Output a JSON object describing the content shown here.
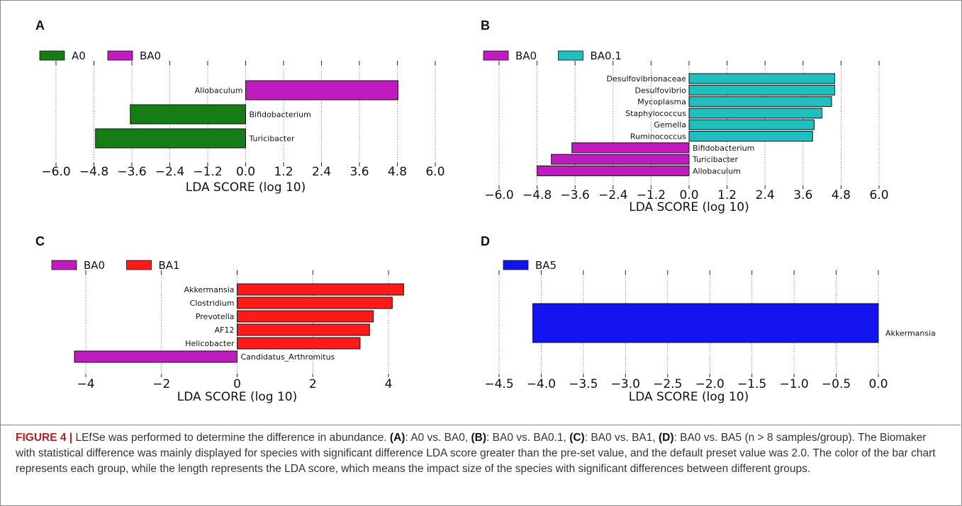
{
  "panels": [
    "A",
    "B",
    "C",
    "D"
  ],
  "chart_data": [
    {
      "panel": "A",
      "type": "bar",
      "orientation": "horizontal",
      "xlabel": "LDA SCORE (log 10)",
      "xlim": [
        -6.6,
        6.6
      ],
      "xticks": [
        -6.0,
        -4.8,
        -3.6,
        -2.4,
        -1.2,
        0.0,
        1.2,
        2.4,
        3.6,
        4.8,
        6.0
      ],
      "tick_labels": [
        "−6.0",
        "−4.8",
        "−3.6",
        "−2.4",
        "−1.2",
        "0.0",
        "1.2",
        "2.4",
        "3.6",
        "4.8",
        "6.0"
      ],
      "grid": "vertical dotted",
      "legend": [
        {
          "name": "A0",
          "color": "#167d16"
        },
        {
          "name": "BA0",
          "color": "#bf1bbf"
        }
      ],
      "categories": [
        "Allobaculum",
        "Bifidobacterium",
        "Turicibacter"
      ],
      "values": [
        4.82,
        -3.65,
        -4.75
      ],
      "colors": [
        "#bf1bbf",
        "#167d16",
        "#167d16"
      ]
    },
    {
      "panel": "B",
      "type": "bar",
      "orientation": "horizontal",
      "xlabel": "LDA SCORE (log 10)",
      "xlim": [
        -6.6,
        6.6
      ],
      "xticks": [
        -6.0,
        -4.8,
        -3.6,
        -2.4,
        -1.2,
        0.0,
        1.2,
        2.4,
        3.6,
        4.8,
        6.0
      ],
      "tick_labels": [
        "−6.0",
        "−4.8",
        "−3.6",
        "−2.4",
        "−1.2",
        "0.0",
        "1.2",
        "2.4",
        "3.6",
        "4.8",
        "6.0"
      ],
      "grid": "vertical dotted",
      "legend": [
        {
          "name": "BA0",
          "color": "#bf1bbf"
        },
        {
          "name": "BA0.1",
          "color": "#1fbfbf"
        }
      ],
      "categories": [
        "Desulfovibrionaceae",
        "Desulfovibrio",
        "Mycoplasma",
        "Staphylococcus",
        "Gemella",
        "Ruminococcus",
        "Bifidobacterium",
        "Turicibacter",
        "Allobaculum"
      ],
      "values": [
        4.6,
        4.6,
        4.5,
        4.2,
        3.95,
        3.9,
        -3.7,
        -4.35,
        -4.8
      ],
      "colors": [
        "#1fbfbf",
        "#1fbfbf",
        "#1fbfbf",
        "#1fbfbf",
        "#1fbfbf",
        "#1fbfbf",
        "#bf1bbf",
        "#bf1bbf",
        "#bf1bbf"
      ]
    },
    {
      "panel": "C",
      "type": "bar",
      "orientation": "horizontal",
      "xlabel": "LDA SCORE (log 10)",
      "xlim": [
        -5.3,
        5.3
      ],
      "xticks": [
        -4,
        -2,
        0,
        2,
        4
      ],
      "tick_labels": [
        "−4",
        "−2",
        "0",
        "2",
        "4"
      ],
      "grid": "vertical dotted",
      "legend": [
        {
          "name": "BA0",
          "color": "#bf1bbf"
        },
        {
          "name": "BA1",
          "color": "#ff1a1a"
        }
      ],
      "categories": [
        "Akkermansia",
        "Clostridium",
        "Prevotella",
        "AF12",
        "Helicobacter",
        "Candidatus_Arthromitus"
      ],
      "values": [
        4.4,
        4.1,
        3.6,
        3.5,
        3.25,
        -4.3
      ],
      "colors": [
        "#ff1a1a",
        "#ff1a1a",
        "#ff1a1a",
        "#ff1a1a",
        "#ff1a1a",
        "#bf1bbf"
      ]
    },
    {
      "panel": "D",
      "type": "bar",
      "orientation": "horizontal",
      "xlabel": "LDA SCORE (log 10)",
      "xlim": [
        -4.5,
        0.0
      ],
      "xticks": [
        -4.5,
        -4.0,
        -3.5,
        -3.0,
        -2.5,
        -2.0,
        -1.5,
        -1.0,
        -0.5,
        0.0
      ],
      "tick_labels": [
        "−4.5",
        "−4.0",
        "−3.5",
        "−3.0",
        "−2.5",
        "−2.0",
        "−1.5",
        "−1.0",
        "−0.5",
        "0.0"
      ],
      "grid": "vertical dotted",
      "legend": [
        {
          "name": "BA5",
          "color": "#1414f0"
        }
      ],
      "categories": [
        "Akkermansia"
      ],
      "values": [
        -4.1
      ],
      "colors": [
        "#1414f0"
      ]
    }
  ],
  "caption": {
    "figure_label": "FIGURE 4 |",
    "parts": [
      {
        "text": " LEfSe was performed to determine the difference in abundance. "
      },
      {
        "text": "(A)",
        "bold": true
      },
      {
        "text": ": A0 vs. BA0, "
      },
      {
        "text": "(B)",
        "bold": true
      },
      {
        "text": ": BA0 vs. BA0.1, "
      },
      {
        "text": "(C)",
        "bold": true
      },
      {
        "text": ": BA0 vs. BA1, "
      },
      {
        "text": "(D)",
        "bold": true
      },
      {
        "text": ": BA0 vs. BA5 (n > 8 samples/group). The Biomaker with statistical difference was mainly displayed for species with significant difference LDA score greater than the pre-set value, and the default preset value was 2.0. The color of the bar chart represents each group, while the length represents the LDA score, which means the impact size of the species with significant differences between different groups."
      }
    ]
  }
}
